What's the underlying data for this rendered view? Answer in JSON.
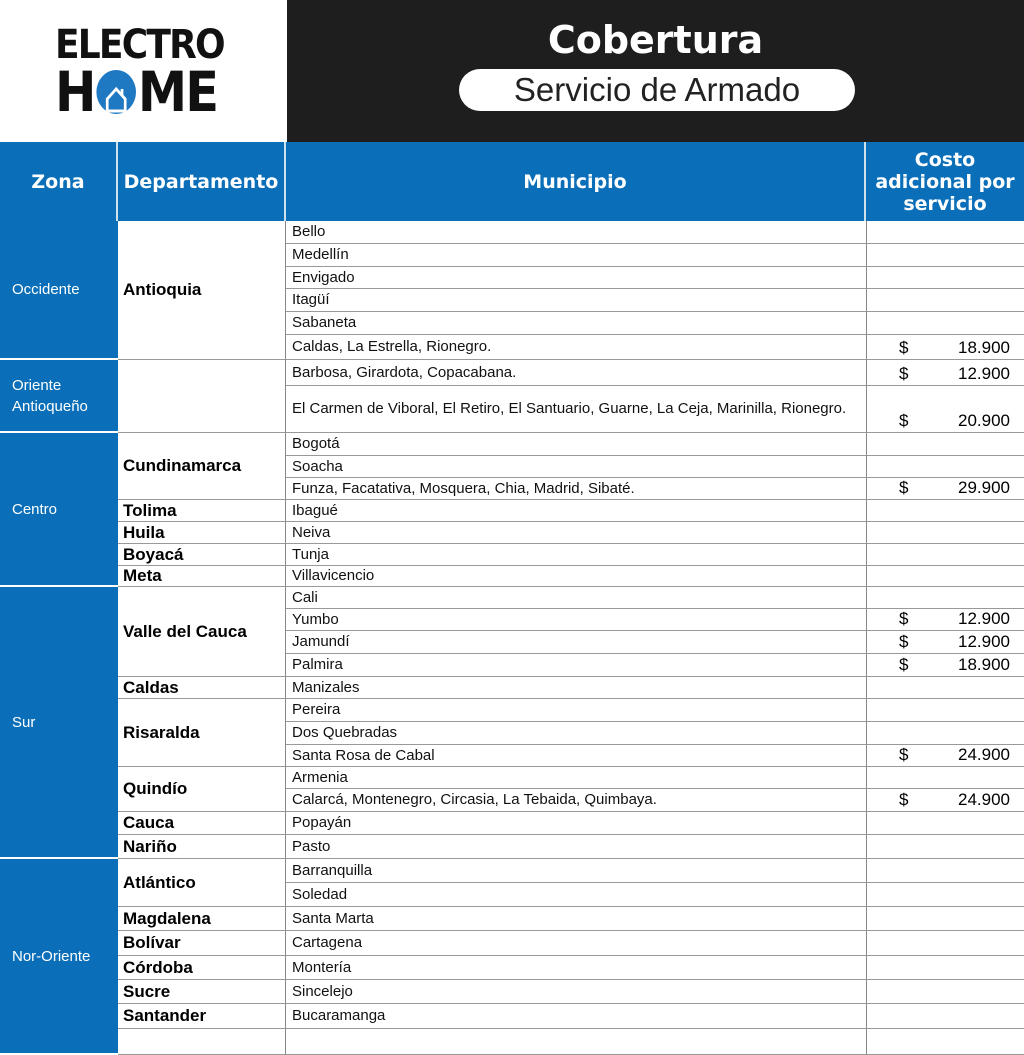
{
  "logo": {
    "line1": "ELECTRO",
    "line2a": "H",
    "line2b": "ME"
  },
  "banner": {
    "title": "Cobertura",
    "subtitle": "Servicio de Armado"
  },
  "headers": [
    "Zona",
    "Departamento",
    "Municipio",
    "Costo adicional por servicio"
  ],
  "currency": "$",
  "zones": [
    {
      "name": "Occidente",
      "rows": 6
    },
    {
      "name": "Oriente Antioqueño",
      "rows": 2
    },
    {
      "name": "Centro",
      "rows": 7
    },
    {
      "name": "Sur",
      "rows": 12
    },
    {
      "name": "Nor-Oriente",
      "rows": 8
    }
  ],
  "departments": [
    {
      "name": "Antioquia",
      "rows": 6
    },
    {
      "name": "",
      "rows": 2
    },
    {
      "name": "Cundinamarca",
      "rows": 3
    },
    {
      "name": "Tolima",
      "rows": 1
    },
    {
      "name": "Huila",
      "rows": 1
    },
    {
      "name": "Boyacá",
      "rows": 1
    },
    {
      "name": "Meta",
      "rows": 1
    },
    {
      "name": "Valle del Cauca",
      "rows": 4
    },
    {
      "name": "Caldas",
      "rows": 1
    },
    {
      "name": "Risaralda",
      "rows": 3
    },
    {
      "name": "Quindío",
      "rows": 2
    },
    {
      "name": "Cauca",
      "rows": 1
    },
    {
      "name": "Nariño",
      "rows": 1
    },
    {
      "name": "Atlántico",
      "rows": 2
    },
    {
      "name": "Magdalena",
      "rows": 1
    },
    {
      "name": "Bolívar",
      "rows": 1
    },
    {
      "name": "Córdoba",
      "rows": 1
    },
    {
      "name": "Sucre",
      "rows": 1
    },
    {
      "name": "Santander",
      "rows": 1
    },
    {
      "name": "",
      "rows": 1
    }
  ],
  "municipios": [
    {
      "name": "Bello",
      "cost": ""
    },
    {
      "name": "Medellín",
      "cost": ""
    },
    {
      "name": "Envigado",
      "cost": ""
    },
    {
      "name": "Itagüí",
      "cost": ""
    },
    {
      "name": "Sabaneta",
      "cost": ""
    },
    {
      "name": "Caldas,  La Estrella, Rionegro.",
      "cost": "18.900"
    },
    {
      "name": "Barbosa, Girardota, Copacabana.",
      "cost": "12.900"
    },
    {
      "name": "El Carmen de Viboral, El Retiro, El Santuario, Guarne, La Ceja, Marinilla, Rionegro.",
      "cost": "20.900"
    },
    {
      "name": "Bogotá",
      "cost": ""
    },
    {
      "name": "Soacha",
      "cost": ""
    },
    {
      "name": "Funza, Facatativa, Mosquera, Chia, Madrid, Sibaté.",
      "cost": "29.900"
    },
    {
      "name": "Ibagué",
      "cost": ""
    },
    {
      "name": "Neiva",
      "cost": ""
    },
    {
      "name": "Tunja",
      "cost": ""
    },
    {
      "name": "Villavicencio",
      "cost": ""
    },
    {
      "name": "Cali",
      "cost": ""
    },
    {
      "name": "Yumbo",
      "cost": "12.900"
    },
    {
      "name": "Jamundí",
      "cost": "12.900"
    },
    {
      "name": "Palmira",
      "cost": "18.900"
    },
    {
      "name": "Manizales",
      "cost": ""
    },
    {
      "name": "Pereira",
      "cost": ""
    },
    {
      "name": "Dos Quebradas",
      "cost": ""
    },
    {
      "name": "Santa Rosa de Cabal",
      "cost": "24.900"
    },
    {
      "name": "Armenia",
      "cost": ""
    },
    {
      "name": "Calarcá, Montenegro, Circasia, La Tebaida, Quimbaya.",
      "cost": "24.900"
    },
    {
      "name": "Popayán",
      "cost": ""
    },
    {
      "name": "Pasto",
      "cost": ""
    },
    {
      "name": "Barranquilla",
      "cost": ""
    },
    {
      "name": "Soledad",
      "cost": ""
    },
    {
      "name": "Santa Marta",
      "cost": ""
    },
    {
      "name": "Cartagena",
      "cost": ""
    },
    {
      "name": "Montería",
      "cost": ""
    },
    {
      "name": "Sincelejo",
      "cost": ""
    },
    {
      "name": "Bucaramanga",
      "cost": ""
    },
    {
      "name": "",
      "cost": ""
    }
  ],
  "colors": {
    "header_blue": "#0a6fb8",
    "banner_dark": "#1e1e1e",
    "logo_blue": "#1e78c2"
  }
}
